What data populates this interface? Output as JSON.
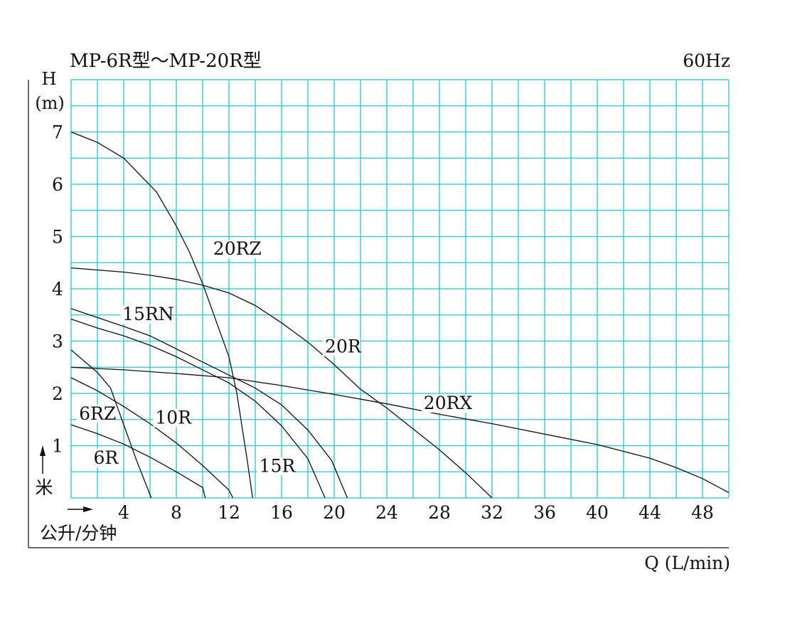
{
  "chart_data": {
    "type": "line",
    "title": "MP-6R型～MP-20R型",
    "frequency": "60Hz",
    "ylabel_symbol": "H",
    "ylabel_unit": "(m)",
    "ylabel_cn": "米",
    "xlabel": "Q (L/min)",
    "xlabel_cn": "公升/分钟",
    "xlim": [
      0,
      50
    ],
    "ylim": [
      0,
      8
    ],
    "x_ticks": [
      4,
      8,
      12,
      16,
      20,
      24,
      28,
      32,
      36,
      40,
      44,
      48
    ],
    "y_ticks": [
      1,
      2,
      3,
      4,
      5,
      6,
      7
    ],
    "grid": true,
    "grid_color": "#22c7cf",
    "line_color": "#111111",
    "series": [
      {
        "name": "6R",
        "points": [
          [
            0,
            1.4
          ],
          [
            2,
            1.23
          ],
          [
            4,
            1.03
          ],
          [
            6,
            0.78
          ],
          [
            8,
            0.5
          ],
          [
            10,
            0.2
          ],
          [
            10.2,
            0.0
          ]
        ]
      },
      {
        "name": "6RZ",
        "points": [
          [
            0,
            2.83
          ],
          [
            2,
            2.4
          ],
          [
            3,
            2.1
          ],
          [
            4,
            1.4
          ],
          [
            5,
            0.7
          ],
          [
            6.1,
            0.0
          ]
        ]
      },
      {
        "name": "10R",
        "points": [
          [
            0,
            2.3
          ],
          [
            2,
            2.05
          ],
          [
            4,
            1.75
          ],
          [
            6,
            1.42
          ],
          [
            8,
            1.05
          ],
          [
            10,
            0.62
          ],
          [
            12,
            0.15
          ],
          [
            12.3,
            0.0
          ]
        ]
      },
      {
        "name": "15R",
        "points": [
          [
            0,
            3.42
          ],
          [
            2,
            3.25
          ],
          [
            4,
            3.1
          ],
          [
            6,
            2.92
          ],
          [
            8,
            2.7
          ],
          [
            10,
            2.45
          ],
          [
            12,
            2.2
          ],
          [
            14,
            1.85
          ],
          [
            16,
            1.38
          ],
          [
            18,
            0.75
          ],
          [
            19.3,
            0.0
          ]
        ]
      },
      {
        "name": "15RN",
        "points": [
          [
            0,
            3.62
          ],
          [
            2,
            3.45
          ],
          [
            4,
            3.28
          ],
          [
            6,
            3.1
          ],
          [
            8,
            2.85
          ],
          [
            10,
            2.6
          ],
          [
            12,
            2.35
          ],
          [
            14,
            2.1
          ],
          [
            16,
            1.78
          ],
          [
            18,
            1.3
          ],
          [
            19.8,
            0.72
          ],
          [
            21,
            0.0
          ]
        ]
      },
      {
        "name": "20RZ",
        "points": [
          [
            0,
            7.0
          ],
          [
            2,
            6.8
          ],
          [
            4,
            6.5
          ],
          [
            6.5,
            5.85
          ],
          [
            8,
            5.2
          ],
          [
            9,
            4.7
          ],
          [
            10,
            4.1
          ],
          [
            11,
            3.4
          ],
          [
            12,
            2.7
          ],
          [
            12.6,
            2.0
          ],
          [
            13,
            1.35
          ],
          [
            13.4,
            0.7
          ],
          [
            13.8,
            0.0
          ]
        ]
      },
      {
        "name": "20R",
        "points": [
          [
            0,
            4.4
          ],
          [
            4,
            4.32
          ],
          [
            6,
            4.26
          ],
          [
            8,
            4.18
          ],
          [
            10,
            4.07
          ],
          [
            12,
            3.92
          ],
          [
            14,
            3.68
          ],
          [
            16,
            3.35
          ],
          [
            18,
            2.98
          ],
          [
            20,
            2.55
          ],
          [
            22,
            2.08
          ],
          [
            24,
            1.72
          ],
          [
            26,
            1.32
          ],
          [
            28,
            0.92
          ],
          [
            30,
            0.48
          ],
          [
            32,
            0.0
          ]
        ]
      },
      {
        "name": "20RX",
        "points": [
          [
            0,
            2.5
          ],
          [
            4,
            2.45
          ],
          [
            8,
            2.38
          ],
          [
            12,
            2.3
          ],
          [
            16,
            2.15
          ],
          [
            20,
            1.98
          ],
          [
            24,
            1.8
          ],
          [
            28,
            1.6
          ],
          [
            32,
            1.42
          ],
          [
            36,
            1.22
          ],
          [
            40,
            1.02
          ],
          [
            44,
            0.76
          ],
          [
            46,
            0.58
          ],
          [
            48,
            0.37
          ],
          [
            50,
            0.1
          ]
        ]
      }
    ],
    "labels": [
      {
        "text": "20RZ",
        "x": 10.8,
        "y": 4.65
      },
      {
        "text": "20R",
        "x": 19.3,
        "y": 2.78
      },
      {
        "text": "15RN",
        "x": 3.9,
        "y": 3.4
      },
      {
        "text": "20RX",
        "x": 26.8,
        "y": 1.7
      },
      {
        "text": "6RZ",
        "x": 0.6,
        "y": 1.5
      },
      {
        "text": "10R",
        "x": 6.4,
        "y": 1.42
      },
      {
        "text": "6R",
        "x": 1.7,
        "y": 0.65
      },
      {
        "text": "15R",
        "x": 14.3,
        "y": 0.5
      }
    ]
  }
}
